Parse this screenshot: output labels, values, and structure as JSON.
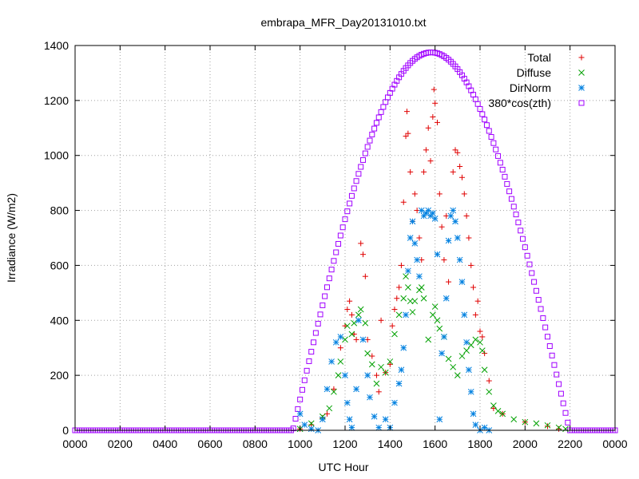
{
  "chart_data": {
    "type": "scatter",
    "title": "embrapa_MFR_Day20131010.txt",
    "xlabel": "UTC Hour",
    "ylabel": "Irradiance (W/m2)",
    "xlim": [
      0,
      2400
    ],
    "ylim": [
      0,
      1400
    ],
    "x_ticks": [
      "0000",
      "0200",
      "0400",
      "0600",
      "0800",
      "1000",
      "1200",
      "1400",
      "1600",
      "1800",
      "2000",
      "2200",
      "0000"
    ],
    "y_ticks": [
      "0",
      "200",
      "400",
      "600",
      "800",
      "1000",
      "1200",
      "1400"
    ],
    "grid": true,
    "legend_position": "top-right",
    "series": [
      {
        "name": "Total",
        "marker": "+",
        "color": "#e00000",
        "points": [
          [
            1000,
            5
          ],
          [
            1050,
            20
          ],
          [
            1100,
            45
          ],
          [
            1120,
            60
          ],
          [
            1150,
            150
          ],
          [
            1180,
            300
          ],
          [
            1200,
            380
          ],
          [
            1210,
            440
          ],
          [
            1220,
            470
          ],
          [
            1230,
            420
          ],
          [
            1240,
            350
          ],
          [
            1250,
            330
          ],
          [
            1270,
            680
          ],
          [
            1280,
            640
          ],
          [
            1290,
            560
          ],
          [
            1300,
            330
          ],
          [
            1320,
            270
          ],
          [
            1340,
            200
          ],
          [
            1350,
            140
          ],
          [
            1360,
            400
          ],
          [
            1380,
            210
          ],
          [
            1400,
            240
          ],
          [
            1410,
            380
          ],
          [
            1420,
            440
          ],
          [
            1430,
            480
          ],
          [
            1440,
            520
          ],
          [
            1450,
            600
          ],
          [
            1460,
            830
          ],
          [
            1470,
            1070
          ],
          [
            1475,
            1160
          ],
          [
            1480,
            1080
          ],
          [
            1490,
            940
          ],
          [
            1500,
            760
          ],
          [
            1510,
            860
          ],
          [
            1520,
            800
          ],
          [
            1530,
            700
          ],
          [
            1540,
            620
          ],
          [
            1550,
            940
          ],
          [
            1560,
            1020
          ],
          [
            1570,
            1100
          ],
          [
            1580,
            980
          ],
          [
            1590,
            1140
          ],
          [
            1595,
            1240
          ],
          [
            1600,
            1190
          ],
          [
            1610,
            1120
          ],
          [
            1620,
            860
          ],
          [
            1630,
            740
          ],
          [
            1640,
            620
          ],
          [
            1650,
            780
          ],
          [
            1660,
            540
          ],
          [
            1680,
            940
          ],
          [
            1690,
            1020
          ],
          [
            1700,
            1010
          ],
          [
            1710,
            960
          ],
          [
            1720,
            920
          ],
          [
            1730,
            860
          ],
          [
            1740,
            780
          ],
          [
            1750,
            700
          ],
          [
            1760,
            600
          ],
          [
            1770,
            520
          ],
          [
            1780,
            420
          ],
          [
            1790,
            470
          ],
          [
            1800,
            360
          ],
          [
            1810,
            340
          ],
          [
            1820,
            280
          ],
          [
            1840,
            180
          ],
          [
            1860,
            80
          ],
          [
            1900,
            60
          ],
          [
            2000,
            30
          ],
          [
            2100,
            15
          ],
          [
            2150,
            5
          ]
        ]
      },
      {
        "name": "Diffuse",
        "marker": "x",
        "color": "#00a000",
        "points": [
          [
            1000,
            5
          ],
          [
            1050,
            25
          ],
          [
            1100,
            50
          ],
          [
            1130,
            80
          ],
          [
            1150,
            140
          ],
          [
            1170,
            200
          ],
          [
            1180,
            250
          ],
          [
            1200,
            330
          ],
          [
            1210,
            380
          ],
          [
            1230,
            350
          ],
          [
            1240,
            390
          ],
          [
            1260,
            420
          ],
          [
            1270,
            440
          ],
          [
            1290,
            390
          ],
          [
            1300,
            280
          ],
          [
            1320,
            240
          ],
          [
            1340,
            170
          ],
          [
            1360,
            230
          ],
          [
            1380,
            210
          ],
          [
            1400,
            250
          ],
          [
            1420,
            350
          ],
          [
            1440,
            420
          ],
          [
            1460,
            480
          ],
          [
            1470,
            560
          ],
          [
            1480,
            520
          ],
          [
            1490,
            470
          ],
          [
            1500,
            430
          ],
          [
            1510,
            470
          ],
          [
            1530,
            510
          ],
          [
            1540,
            520
          ],
          [
            1550,
            480
          ],
          [
            1570,
            330
          ],
          [
            1590,
            420
          ],
          [
            1600,
            450
          ],
          [
            1610,
            400
          ],
          [
            1620,
            370
          ],
          [
            1640,
            340
          ],
          [
            1660,
            260
          ],
          [
            1680,
            230
          ],
          [
            1700,
            200
          ],
          [
            1720,
            270
          ],
          [
            1740,
            290
          ],
          [
            1760,
            310
          ],
          [
            1780,
            330
          ],
          [
            1800,
            320
          ],
          [
            1810,
            290
          ],
          [
            1820,
            220
          ],
          [
            1840,
            140
          ],
          [
            1860,
            90
          ],
          [
            1880,
            70
          ],
          [
            1900,
            60
          ],
          [
            1950,
            40
          ],
          [
            2000,
            30
          ],
          [
            2050,
            25
          ],
          [
            2100,
            18
          ],
          [
            2150,
            10
          ],
          [
            2180,
            5
          ]
        ]
      },
      {
        "name": "DirNorm",
        "marker": "*",
        "color": "#0080e0",
        "points": [
          [
            1000,
            60
          ],
          [
            1020,
            20
          ],
          [
            1050,
            5
          ],
          [
            1080,
            0
          ],
          [
            1100,
            40
          ],
          [
            1120,
            150
          ],
          [
            1140,
            250
          ],
          [
            1160,
            320
          ],
          [
            1180,
            340
          ],
          [
            1200,
            200
          ],
          [
            1210,
            100
          ],
          [
            1220,
            40
          ],
          [
            1230,
            10
          ],
          [
            1250,
            150
          ],
          [
            1260,
            400
          ],
          [
            1280,
            330
          ],
          [
            1300,
            200
          ],
          [
            1310,
            120
          ],
          [
            1330,
            50
          ],
          [
            1350,
            10
          ],
          [
            1380,
            40
          ],
          [
            1400,
            10
          ],
          [
            1420,
            100
          ],
          [
            1440,
            170
          ],
          [
            1450,
            220
          ],
          [
            1460,
            300
          ],
          [
            1470,
            420
          ],
          [
            1480,
            580
          ],
          [
            1490,
            700
          ],
          [
            1500,
            760
          ],
          [
            1510,
            680
          ],
          [
            1520,
            620
          ],
          [
            1530,
            560
          ],
          [
            1540,
            800
          ],
          [
            1550,
            780
          ],
          [
            1560,
            790
          ],
          [
            1570,
            800
          ],
          [
            1580,
            780
          ],
          [
            1590,
            790
          ],
          [
            1600,
            770
          ],
          [
            1610,
            640
          ],
          [
            1620,
            40
          ],
          [
            1630,
            280
          ],
          [
            1640,
            340
          ],
          [
            1650,
            480
          ],
          [
            1660,
            690
          ],
          [
            1670,
            780
          ],
          [
            1680,
            800
          ],
          [
            1690,
            760
          ],
          [
            1700,
            700
          ],
          [
            1710,
            620
          ],
          [
            1720,
            540
          ],
          [
            1730,
            420
          ],
          [
            1740,
            320
          ],
          [
            1750,
            220
          ],
          [
            1760,
            140
          ],
          [
            1770,
            60
          ],
          [
            1780,
            20
          ],
          [
            1800,
            0
          ],
          [
            1820,
            10
          ],
          [
            1840,
            0
          ]
        ]
      },
      {
        "name": "380*cos(zth)",
        "marker": "square",
        "color": "#a000ff",
        "curve": {
          "center": 1583,
          "half_width": 615,
          "peak": 1375
        }
      }
    ]
  }
}
